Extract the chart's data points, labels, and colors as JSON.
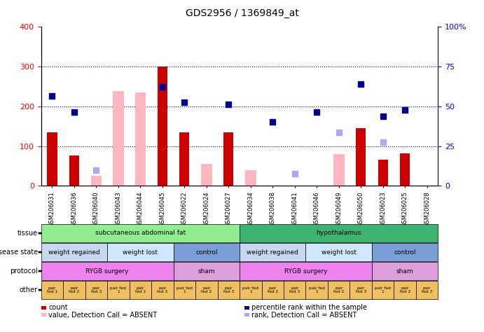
{
  "title": "GDS2956 / 1369849_at",
  "samples": [
    "GSM206031",
    "GSM206036",
    "GSM206040",
    "GSM206043",
    "GSM206044",
    "GSM206045",
    "GSM206022",
    "GSM206024",
    "GSM206027",
    "GSM206034",
    "GSM206038",
    "GSM206041",
    "GSM206046",
    "GSM206049",
    "GSM206050",
    "GSM206023",
    "GSM206025",
    "GSM206028"
  ],
  "count": [
    135,
    77,
    null,
    null,
    null,
    300,
    135,
    null,
    135,
    null,
    null,
    null,
    null,
    null,
    145,
    65,
    82,
    null
  ],
  "percentile_rank": [
    225,
    185,
    null,
    null,
    null,
    248,
    210,
    null,
    205,
    null,
    160,
    null,
    185,
    null,
    255,
    175,
    190,
    null
  ],
  "value_absent": [
    null,
    null,
    25,
    238,
    235,
    null,
    null,
    55,
    null,
    40,
    null,
    null,
    null,
    80,
    null,
    null,
    null,
    null
  ],
  "rank_absent": [
    null,
    null,
    40,
    null,
    null,
    null,
    null,
    null,
    null,
    null,
    null,
    30,
    null,
    135,
    null,
    110,
    null,
    null
  ],
  "ylim_left": [
    0,
    400
  ],
  "ylim_right": [
    0,
    100
  ],
  "yticks_left": [
    0,
    100,
    200,
    300,
    400
  ],
  "yticks_right": [
    0,
    25,
    50,
    75,
    100
  ],
  "tissue_groups": [
    {
      "label": "subcutaneous abdominal fat",
      "start": 0,
      "end": 9,
      "color": "#90EE90"
    },
    {
      "label": "hypothalamus",
      "start": 9,
      "end": 18,
      "color": "#3CB371"
    }
  ],
  "disease_state_groups": [
    {
      "label": "weight regained",
      "start": 0,
      "end": 3,
      "color": "#C8D8F0"
    },
    {
      "label": "weight lost",
      "start": 3,
      "end": 6,
      "color": "#D0E8FF"
    },
    {
      "label": "control",
      "start": 6,
      "end": 9,
      "color": "#7B9ED9"
    },
    {
      "label": "weight regained",
      "start": 9,
      "end": 12,
      "color": "#C8D8F0"
    },
    {
      "label": "weight lost",
      "start": 12,
      "end": 15,
      "color": "#D0E8FF"
    },
    {
      "label": "control",
      "start": 15,
      "end": 18,
      "color": "#7B9ED9"
    }
  ],
  "protocol_groups": [
    {
      "label": "RYGB surgery",
      "start": 0,
      "end": 6,
      "color": "#EE82EE"
    },
    {
      "label": "sham",
      "start": 6,
      "end": 9,
      "color": "#DDA0DD"
    },
    {
      "label": "RYGB surgery",
      "start": 9,
      "end": 15,
      "color": "#EE82EE"
    },
    {
      "label": "sham",
      "start": 15,
      "end": 18,
      "color": "#DDA0DD"
    }
  ],
  "other_labels": [
    "pair\nfed 1",
    "pair\nfed 2",
    "pair\nfed 3",
    "pair fed\n1",
    "pair\nfed 2",
    "pair\nfed 3",
    "pair fed\n1",
    "pair\nfed 2",
    "pair\nfed 3",
    "pair fed\n1",
    "pair\nfed 2",
    "pair\nfed 3",
    "pair fed\n1",
    "pair\nfed 2",
    "pair\nfed 3",
    "pair fed\n1",
    "pair\nfed 2",
    "pair\nfed 3"
  ],
  "other_color": "#F0C060",
  "bar_color_red": "#CC0000",
  "bar_color_pink": "#FFB6C1",
  "dot_color_blue": "#00008B",
  "dot_color_lightblue": "#AAAAEE",
  "grid_color": "#000000",
  "bg_color": "#FFFFFF",
  "xlim": [
    -0.5,
    17.5
  ],
  "legend_items": [
    {
      "color": "#CC0000",
      "label": "count",
      "type": "rect"
    },
    {
      "color": "#00008B",
      "label": "percentile rank within the sample",
      "type": "square"
    },
    {
      "color": "#FFB6C1",
      "label": "value, Detection Call = ABSENT",
      "type": "rect"
    },
    {
      "color": "#AAAAEE",
      "label": "rank, Detection Call = ABSENT",
      "type": "square"
    }
  ]
}
